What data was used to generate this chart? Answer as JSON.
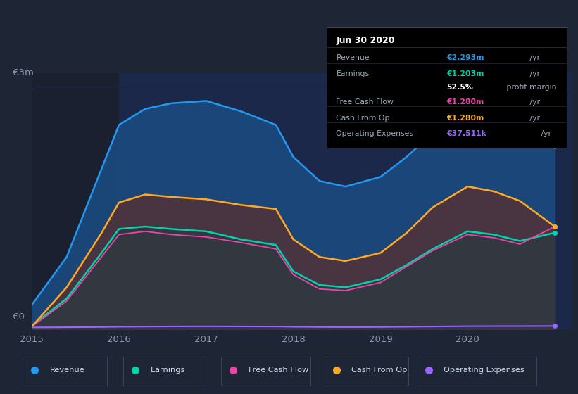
{
  "bg_color": "#1e2535",
  "plot_bg_color": "#1a2030",
  "grid_color": "#2a3550",
  "x_years": [
    2015.0,
    2015.4,
    2015.8,
    2016.0,
    2016.3,
    2016.6,
    2017.0,
    2017.4,
    2017.8,
    2018.0,
    2018.3,
    2018.6,
    2019.0,
    2019.3,
    2019.6,
    2020.0,
    2020.3,
    2020.6,
    2021.0
  ],
  "revenue": [
    0.3,
    0.9,
    2.0,
    2.55,
    2.75,
    2.82,
    2.85,
    2.72,
    2.55,
    2.15,
    1.85,
    1.78,
    1.9,
    2.15,
    2.45,
    2.7,
    2.65,
    2.5,
    2.293
  ],
  "earnings": [
    0.04,
    0.38,
    0.95,
    1.25,
    1.28,
    1.25,
    1.22,
    1.12,
    1.05,
    0.72,
    0.55,
    0.52,
    0.62,
    0.8,
    1.0,
    1.22,
    1.18,
    1.1,
    1.203
  ],
  "free_cash_flow": [
    0.03,
    0.35,
    0.9,
    1.18,
    1.22,
    1.18,
    1.15,
    1.08,
    1.0,
    0.68,
    0.5,
    0.48,
    0.58,
    0.78,
    0.98,
    1.18,
    1.14,
    1.06,
    1.28
  ],
  "cash_from_op": [
    0.03,
    0.52,
    1.2,
    1.58,
    1.68,
    1.65,
    1.62,
    1.55,
    1.5,
    1.12,
    0.9,
    0.85,
    0.95,
    1.2,
    1.52,
    1.78,
    1.72,
    1.6,
    1.28
  ],
  "operating_exp": [
    0.02,
    0.022,
    0.025,
    0.028,
    0.03,
    0.032,
    0.033,
    0.032,
    0.031,
    0.028,
    0.025,
    0.024,
    0.025,
    0.028,
    0.031,
    0.035,
    0.036,
    0.036,
    0.0375
  ],
  "revenue_color": "#2299ee",
  "earnings_color": "#00d4aa",
  "fcf_color": "#ee44aa",
  "cashop_color": "#ffaa22",
  "opex_color": "#9966ff",
  "ylim": [
    0,
    3.2
  ],
  "xlim": [
    2015.0,
    2021.2
  ],
  "y_label_3m": "€3m",
  "y_label_0": "€0",
  "highlight_start": 2016.0,
  "highlight_end": 2021.2,
  "info_box": {
    "title": "Jun 30 2020",
    "rows": [
      {
        "label": "Revenue",
        "value": "€2.293m",
        "unit": " /yr",
        "color": "#2299ee"
      },
      {
        "label": "Earnings",
        "value": "€1.203m",
        "unit": " /yr",
        "color": "#00d4aa"
      },
      {
        "label": "",
        "value": "52.5%",
        "unit": " profit margin",
        "color": "#ffffff"
      },
      {
        "label": "Free Cash Flow",
        "value": "€1.280m",
        "unit": " /yr",
        "color": "#ee44aa"
      },
      {
        "label": "Cash From Op",
        "value": "€1.280m",
        "unit": " /yr",
        "color": "#ffaa22"
      },
      {
        "label": "Operating Expenses",
        "value": "€37.511k",
        "unit": " /yr",
        "color": "#9966ff"
      }
    ]
  },
  "legend_items": [
    {
      "label": "Revenue",
      "color": "#2299ee"
    },
    {
      "label": "Earnings",
      "color": "#00d4aa"
    },
    {
      "label": "Free Cash Flow",
      "color": "#ee44aa"
    },
    {
      "label": "Cash From Op",
      "color": "#ffaa22"
    },
    {
      "label": "Operating Expenses",
      "color": "#9966ff"
    }
  ]
}
